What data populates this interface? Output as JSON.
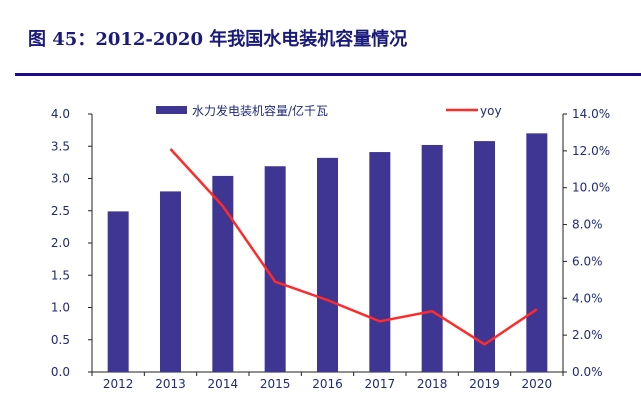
{
  "title": "图 45：2012-2020 年我国水电装机容量情况",
  "colors": {
    "bar": "#3f3592",
    "line": "#ff2a2a",
    "text": "#1f2a7a",
    "title": "#1a1a7a"
  },
  "chart_data": {
    "type": "bar+line",
    "categories": [
      "2012",
      "2013",
      "2014",
      "2015",
      "2016",
      "2017",
      "2018",
      "2019",
      "2020"
    ],
    "series": [
      {
        "name": "水力发电装机容量/亿千瓦",
        "type": "bar",
        "axis": "left",
        "values": [
          2.49,
          2.8,
          3.04,
          3.19,
          3.32,
          3.41,
          3.52,
          3.58,
          3.7
        ]
      },
      {
        "name": "yoy",
        "type": "line",
        "axis": "right",
        "values": [
          null,
          12.1,
          9.0,
          4.9,
          3.9,
          2.75,
          3.3,
          1.5,
          3.4
        ]
      }
    ],
    "ylim_left": [
      0,
      4.0
    ],
    "yticks_left": [
      "0.0",
      "0.5",
      "1.0",
      "1.5",
      "2.0",
      "2.5",
      "3.0",
      "3.5",
      "4.0"
    ],
    "ylim_right": [
      0,
      14
    ],
    "yticks_right": [
      "0.0%",
      "2.0%",
      "4.0%",
      "6.0%",
      "8.0%",
      "10.0%",
      "12.0%",
      "14.0%"
    ],
    "legend": "top",
    "grid": false
  }
}
